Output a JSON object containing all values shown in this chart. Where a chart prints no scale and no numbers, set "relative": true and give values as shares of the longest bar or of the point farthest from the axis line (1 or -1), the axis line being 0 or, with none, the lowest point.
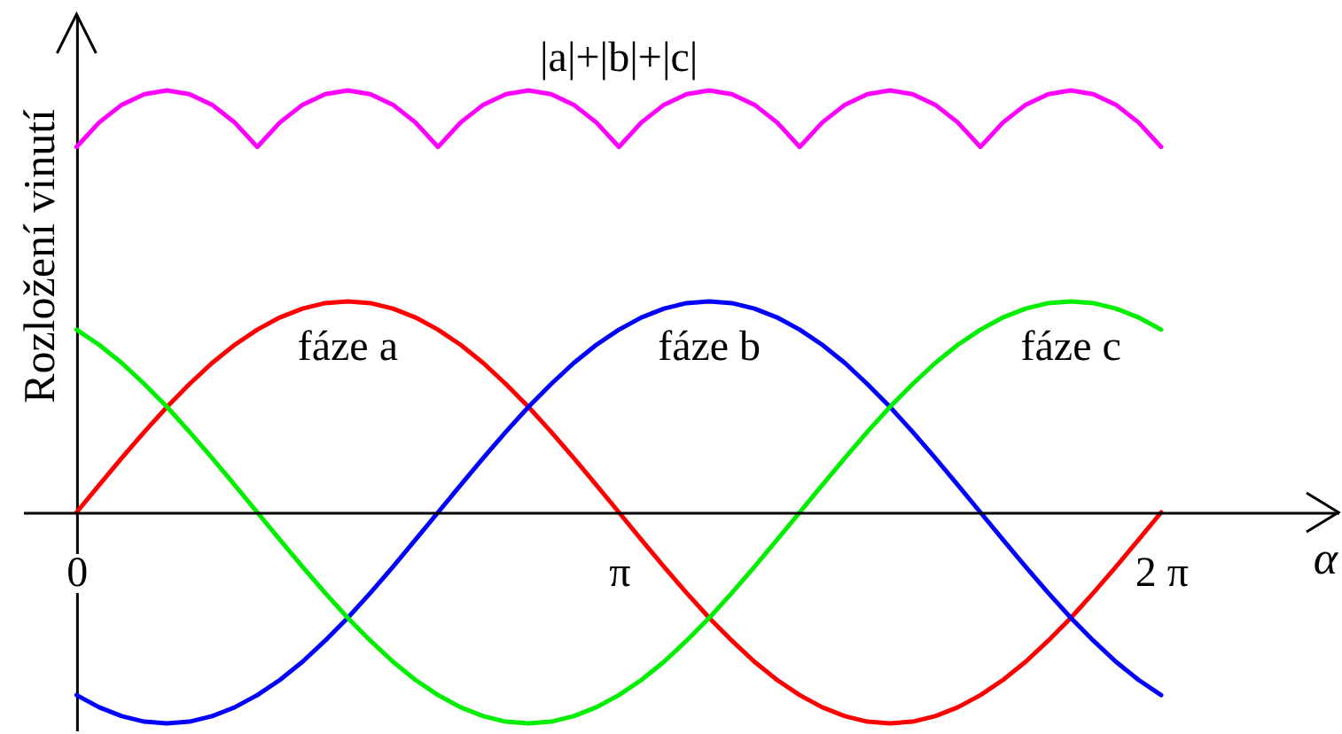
{
  "chart_data": {
    "type": "line",
    "relative": true,
    "xlabel": "α",
    "ylabel": "Rozložení vinutí",
    "tick_labels": "x",
    "xlim": [
      -0.31,
      7.31
    ],
    "xticks": [
      0,
      {
        "value": 3.142,
        "label": "π"
      },
      {
        "value": 6.283,
        "label": "2 π"
      }
    ],
    "x": [
      0,
      0.131,
      0.262,
      0.393,
      0.524,
      0.654,
      0.785,
      0.916,
      1.047,
      1.178,
      1.309,
      1.44,
      1.571,
      1.702,
      1.833,
      1.963,
      2.094,
      2.225,
      2.356,
      2.487,
      2.618,
      2.749,
      2.88,
      3.011,
      3.142,
      3.272,
      3.403,
      3.534,
      3.665,
      3.796,
      3.927,
      4.058,
      4.189,
      4.32,
      4.451,
      4.581,
      4.712,
      4.843,
      4.974,
      5.105,
      5.236,
      5.367,
      5.498,
      5.629,
      5.76,
      5.89,
      6.021,
      6.152,
      6.283
    ],
    "series": [
      {
        "name": "fáze a",
        "color": "#ff0000",
        "values": [
          0,
          0.065,
          0.129,
          0.191,
          0.25,
          0.304,
          0.354,
          0.397,
          0.433,
          0.462,
          0.483,
          0.496,
          0.5,
          0.496,
          0.483,
          0.462,
          0.433,
          0.397,
          0.354,
          0.304,
          0.25,
          0.191,
          0.129,
          0.065,
          0,
          -0.065,
          -0.129,
          -0.191,
          -0.25,
          -0.304,
          -0.354,
          -0.397,
          -0.433,
          -0.462,
          -0.483,
          -0.496,
          -0.5,
          -0.496,
          -0.483,
          -0.462,
          -0.433,
          -0.397,
          -0.354,
          -0.304,
          -0.25,
          -0.191,
          -0.129,
          -0.065,
          0
        ]
      },
      {
        "name": "fáze b",
        "color": "#0000ff",
        "values": [
          -0.433,
          -0.462,
          -0.483,
          -0.496,
          -0.5,
          -0.496,
          -0.483,
          -0.462,
          -0.433,
          -0.397,
          -0.354,
          -0.304,
          -0.25,
          -0.191,
          -0.129,
          -0.065,
          0,
          0.065,
          0.129,
          0.191,
          0.25,
          0.304,
          0.354,
          0.397,
          0.433,
          0.462,
          0.483,
          0.496,
          0.5,
          0.496,
          0.483,
          0.462,
          0.433,
          0.397,
          0.354,
          0.304,
          0.25,
          0.191,
          0.129,
          0.065,
          0,
          -0.065,
          -0.129,
          -0.191,
          -0.25,
          -0.304,
          -0.354,
          -0.397,
          -0.433
        ]
      },
      {
        "name": "fáze c",
        "color": "#00ee00",
        "values": [
          0.433,
          0.397,
          0.354,
          0.304,
          0.25,
          0.191,
          0.129,
          0.065,
          0,
          -0.065,
          -0.129,
          -0.191,
          -0.25,
          -0.304,
          -0.354,
          -0.397,
          -0.433,
          -0.462,
          -0.483,
          -0.496,
          -0.5,
          -0.496,
          -0.483,
          -0.462,
          -0.433,
          -0.397,
          -0.354,
          -0.304,
          -0.25,
          -0.191,
          -0.129,
          -0.065,
          0,
          0.065,
          0.129,
          0.191,
          0.25,
          0.304,
          0.354,
          0.397,
          0.433,
          0.462,
          0.483,
          0.496,
          0.5,
          0.496,
          0.483,
          0.462,
          0.433
        ]
      },
      {
        "name": "|a|+|b|+|c|",
        "color": "#ff00ff",
        "values": [
          0.866,
          0.924,
          0.966,
          0.991,
          1,
          0.991,
          0.966,
          0.924,
          0.866,
          0.924,
          0.966,
          0.991,
          1,
          0.991,
          0.966,
          0.924,
          0.866,
          0.924,
          0.966,
          0.991,
          1,
          0.991,
          0.966,
          0.924,
          0.866,
          0.924,
          0.966,
          0.991,
          1,
          0.991,
          0.966,
          0.924,
          0.866,
          0.924,
          0.966,
          0.991,
          1,
          0.991,
          0.966,
          0.924,
          0.866,
          0.924,
          0.966,
          0.991,
          1,
          0.991,
          0.966,
          0.924,
          0.866
        ]
      }
    ]
  }
}
